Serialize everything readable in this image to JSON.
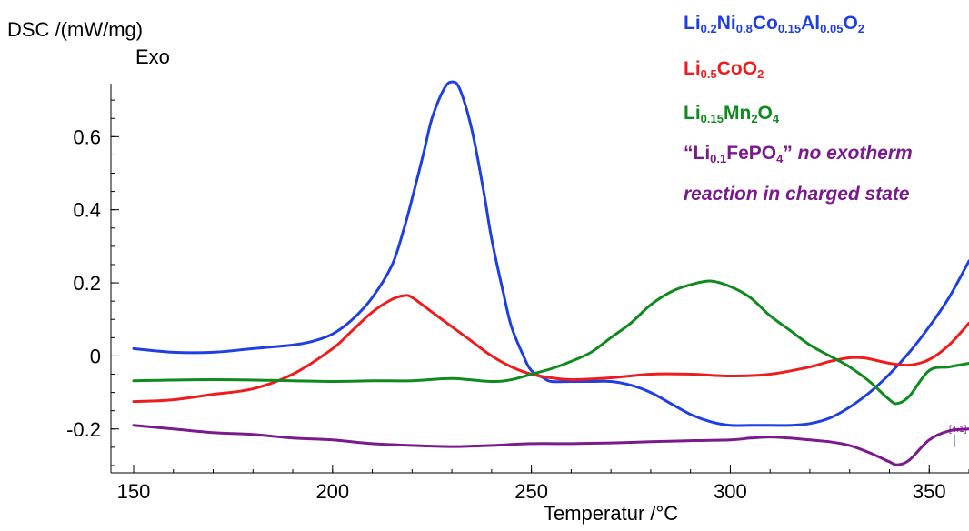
{
  "chart_data": {
    "type": "line",
    "title": "",
    "ylabel": "DSC /(mW/mg)",
    "ylabel_annotation": "Exo",
    "xlabel": "Temperatur /°C",
    "xlim": [
      150,
      360
    ],
    "ylim": [
      -0.32,
      0.78
    ],
    "x_ticks": [
      150,
      200,
      250,
      300,
      350
    ],
    "y_ticks": [
      -0.2,
      0,
      0.2,
      0.4,
      0.6
    ],
    "y_tick_labels": [
      "-0.2",
      "0",
      "0.2",
      "0.4",
      "0.6"
    ],
    "grid": false,
    "legend_position": "top-right",
    "end_annotation": "[4.1]",
    "series": [
      {
        "name": "Li0.2Ni0.8Co0.15Al0.05O2",
        "color": "#1f3fe0",
        "x": [
          150,
          160,
          170,
          180,
          190,
          195,
          200,
          205,
          210,
          215,
          218,
          220,
          223,
          225,
          228,
          230,
          232,
          235,
          238,
          240,
          243,
          245,
          248,
          250,
          253,
          255,
          260,
          265,
          270,
          275,
          280,
          285,
          290,
          295,
          300,
          305,
          310,
          315,
          320,
          325,
          330,
          335,
          340,
          345,
          350,
          355,
          360
        ],
        "y": [
          0.02,
          0.01,
          0.01,
          0.02,
          0.03,
          0.04,
          0.06,
          0.1,
          0.16,
          0.25,
          0.35,
          0.43,
          0.56,
          0.65,
          0.73,
          0.75,
          0.73,
          0.62,
          0.45,
          0.32,
          0.17,
          0.08,
          0.0,
          -0.04,
          -0.06,
          -0.07,
          -0.07,
          -0.07,
          -0.07,
          -0.08,
          -0.1,
          -0.13,
          -0.16,
          -0.18,
          -0.19,
          -0.19,
          -0.19,
          -0.19,
          -0.185,
          -0.17,
          -0.14,
          -0.1,
          -0.05,
          0.01,
          0.08,
          0.16,
          0.26
        ]
      },
      {
        "name": "Li0.5CoO2",
        "color": "#ee1c1c",
        "x": [
          150,
          160,
          170,
          180,
          190,
          200,
          205,
          210,
          215,
          218,
          220,
          225,
          230,
          235,
          240,
          245,
          250,
          255,
          260,
          270,
          280,
          290,
          300,
          310,
          320,
          325,
          330,
          333,
          335,
          340,
          345,
          350,
          355,
          360
        ],
        "y": [
          -0.125,
          -0.12,
          -0.105,
          -0.09,
          -0.05,
          0.02,
          0.07,
          0.12,
          0.155,
          0.165,
          0.16,
          0.12,
          0.08,
          0.04,
          0.0,
          -0.03,
          -0.05,
          -0.06,
          -0.065,
          -0.06,
          -0.05,
          -0.05,
          -0.055,
          -0.05,
          -0.03,
          -0.015,
          -0.005,
          -0.005,
          -0.008,
          -0.02,
          -0.025,
          -0.01,
          0.03,
          0.09
        ]
      },
      {
        "name": "Li0.15Mn2O4",
        "color": "#0e8a1e",
        "x": [
          150,
          170,
          190,
          200,
          210,
          220,
          230,
          240,
          245,
          250,
          255,
          260,
          265,
          270,
          275,
          280,
          285,
          290,
          295,
          300,
          305,
          310,
          315,
          320,
          325,
          330,
          335,
          340,
          342,
          345,
          350,
          355,
          360
        ],
        "y": [
          -0.068,
          -0.065,
          -0.068,
          -0.07,
          -0.068,
          -0.068,
          -0.062,
          -0.07,
          -0.065,
          -0.05,
          -0.035,
          -0.015,
          0.01,
          0.05,
          0.09,
          0.14,
          0.175,
          0.195,
          0.205,
          0.19,
          0.16,
          0.11,
          0.07,
          0.03,
          0.0,
          -0.03,
          -0.07,
          -0.12,
          -0.13,
          -0.11,
          -0.04,
          -0.03,
          -0.02
        ]
      },
      {
        "name": "\"Li0.1FePO4\"",
        "color": "#7a1a8c",
        "x": [
          150,
          160,
          170,
          180,
          190,
          200,
          210,
          220,
          230,
          240,
          250,
          260,
          270,
          280,
          290,
          300,
          305,
          310,
          315,
          320,
          325,
          330,
          335,
          340,
          342,
          345,
          350,
          355,
          360
        ],
        "y": [
          -0.19,
          -0.2,
          -0.21,
          -0.215,
          -0.225,
          -0.23,
          -0.24,
          -0.245,
          -0.248,
          -0.245,
          -0.24,
          -0.24,
          -0.238,
          -0.235,
          -0.232,
          -0.23,
          -0.225,
          -0.222,
          -0.225,
          -0.23,
          -0.235,
          -0.245,
          -0.265,
          -0.29,
          -0.298,
          -0.285,
          -0.23,
          -0.205,
          -0.2
        ]
      }
    ]
  },
  "legend": {
    "s1": {
      "a": "Li",
      "b": "0.2",
      "c": "Ni",
      "d": "0.8",
      "e": "Co",
      "f": "0.15",
      "g": "Al",
      "h": "0.05",
      "i": "O",
      "j": "2"
    },
    "s2": {
      "a": "Li",
      "b": "0.5",
      "c": "CoO",
      "d": "2"
    },
    "s3": {
      "a": "Li",
      "b": "0.15",
      "c": "Mn",
      "d": "2",
      "e": "O",
      "f": "4"
    },
    "s4": {
      "a": "“Li",
      "b": "0.1",
      "c": "FePO",
      "d": "4",
      "e": "”",
      "f": " no exotherm",
      "g": "reaction in charged state"
    }
  }
}
